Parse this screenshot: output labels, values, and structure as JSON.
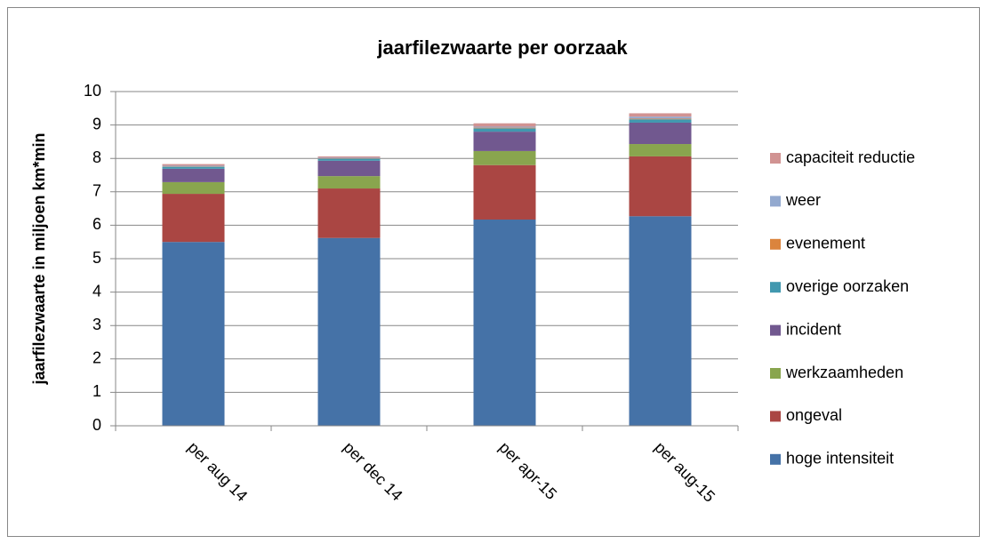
{
  "chart_data": {
    "type": "stacked_bar",
    "title": "jaarfilezwaarte per oorzaak",
    "y_label": "jaarfilezwaarte in miljoen km*min",
    "categories": [
      "per aug 14",
      "per dec 14",
      "per apr-15",
      "per aug-15"
    ],
    "series": [
      {
        "name": "hoge intensiteit",
        "color": "#4572A7",
        "values": [
          5.5,
          5.62,
          6.17,
          6.27
        ]
      },
      {
        "name": "ongeval",
        "color": "#AA4643",
        "values": [
          1.44,
          1.48,
          1.63,
          1.79
        ]
      },
      {
        "name": "werkzaamheden",
        "color": "#89A54E",
        "values": [
          0.35,
          0.37,
          0.42,
          0.37
        ]
      },
      {
        "name": "incident",
        "color": "#71588F",
        "values": [
          0.4,
          0.46,
          0.58,
          0.64
        ]
      },
      {
        "name": "overige oorzaken",
        "color": "#4198AF",
        "values": [
          0.06,
          0.06,
          0.1,
          0.1
        ]
      },
      {
        "name": "evenement",
        "color": "#DB843D",
        "values": [
          0.01,
          0.01,
          0.02,
          0.02
        ]
      },
      {
        "name": "weer",
        "color": "#93A9CF",
        "values": [
          0.02,
          0.02,
          0.03,
          0.06
        ]
      },
      {
        "name": "capaciteit reductie",
        "color": "#D19392",
        "values": [
          0.05,
          0.04,
          0.1,
          0.1
        ]
      }
    ],
    "ylim": [
      0,
      10
    ],
    "yticks": [
      0,
      1,
      2,
      3,
      4,
      5,
      6,
      7,
      8,
      9,
      10
    ],
    "grid": true,
    "legend": "right"
  }
}
